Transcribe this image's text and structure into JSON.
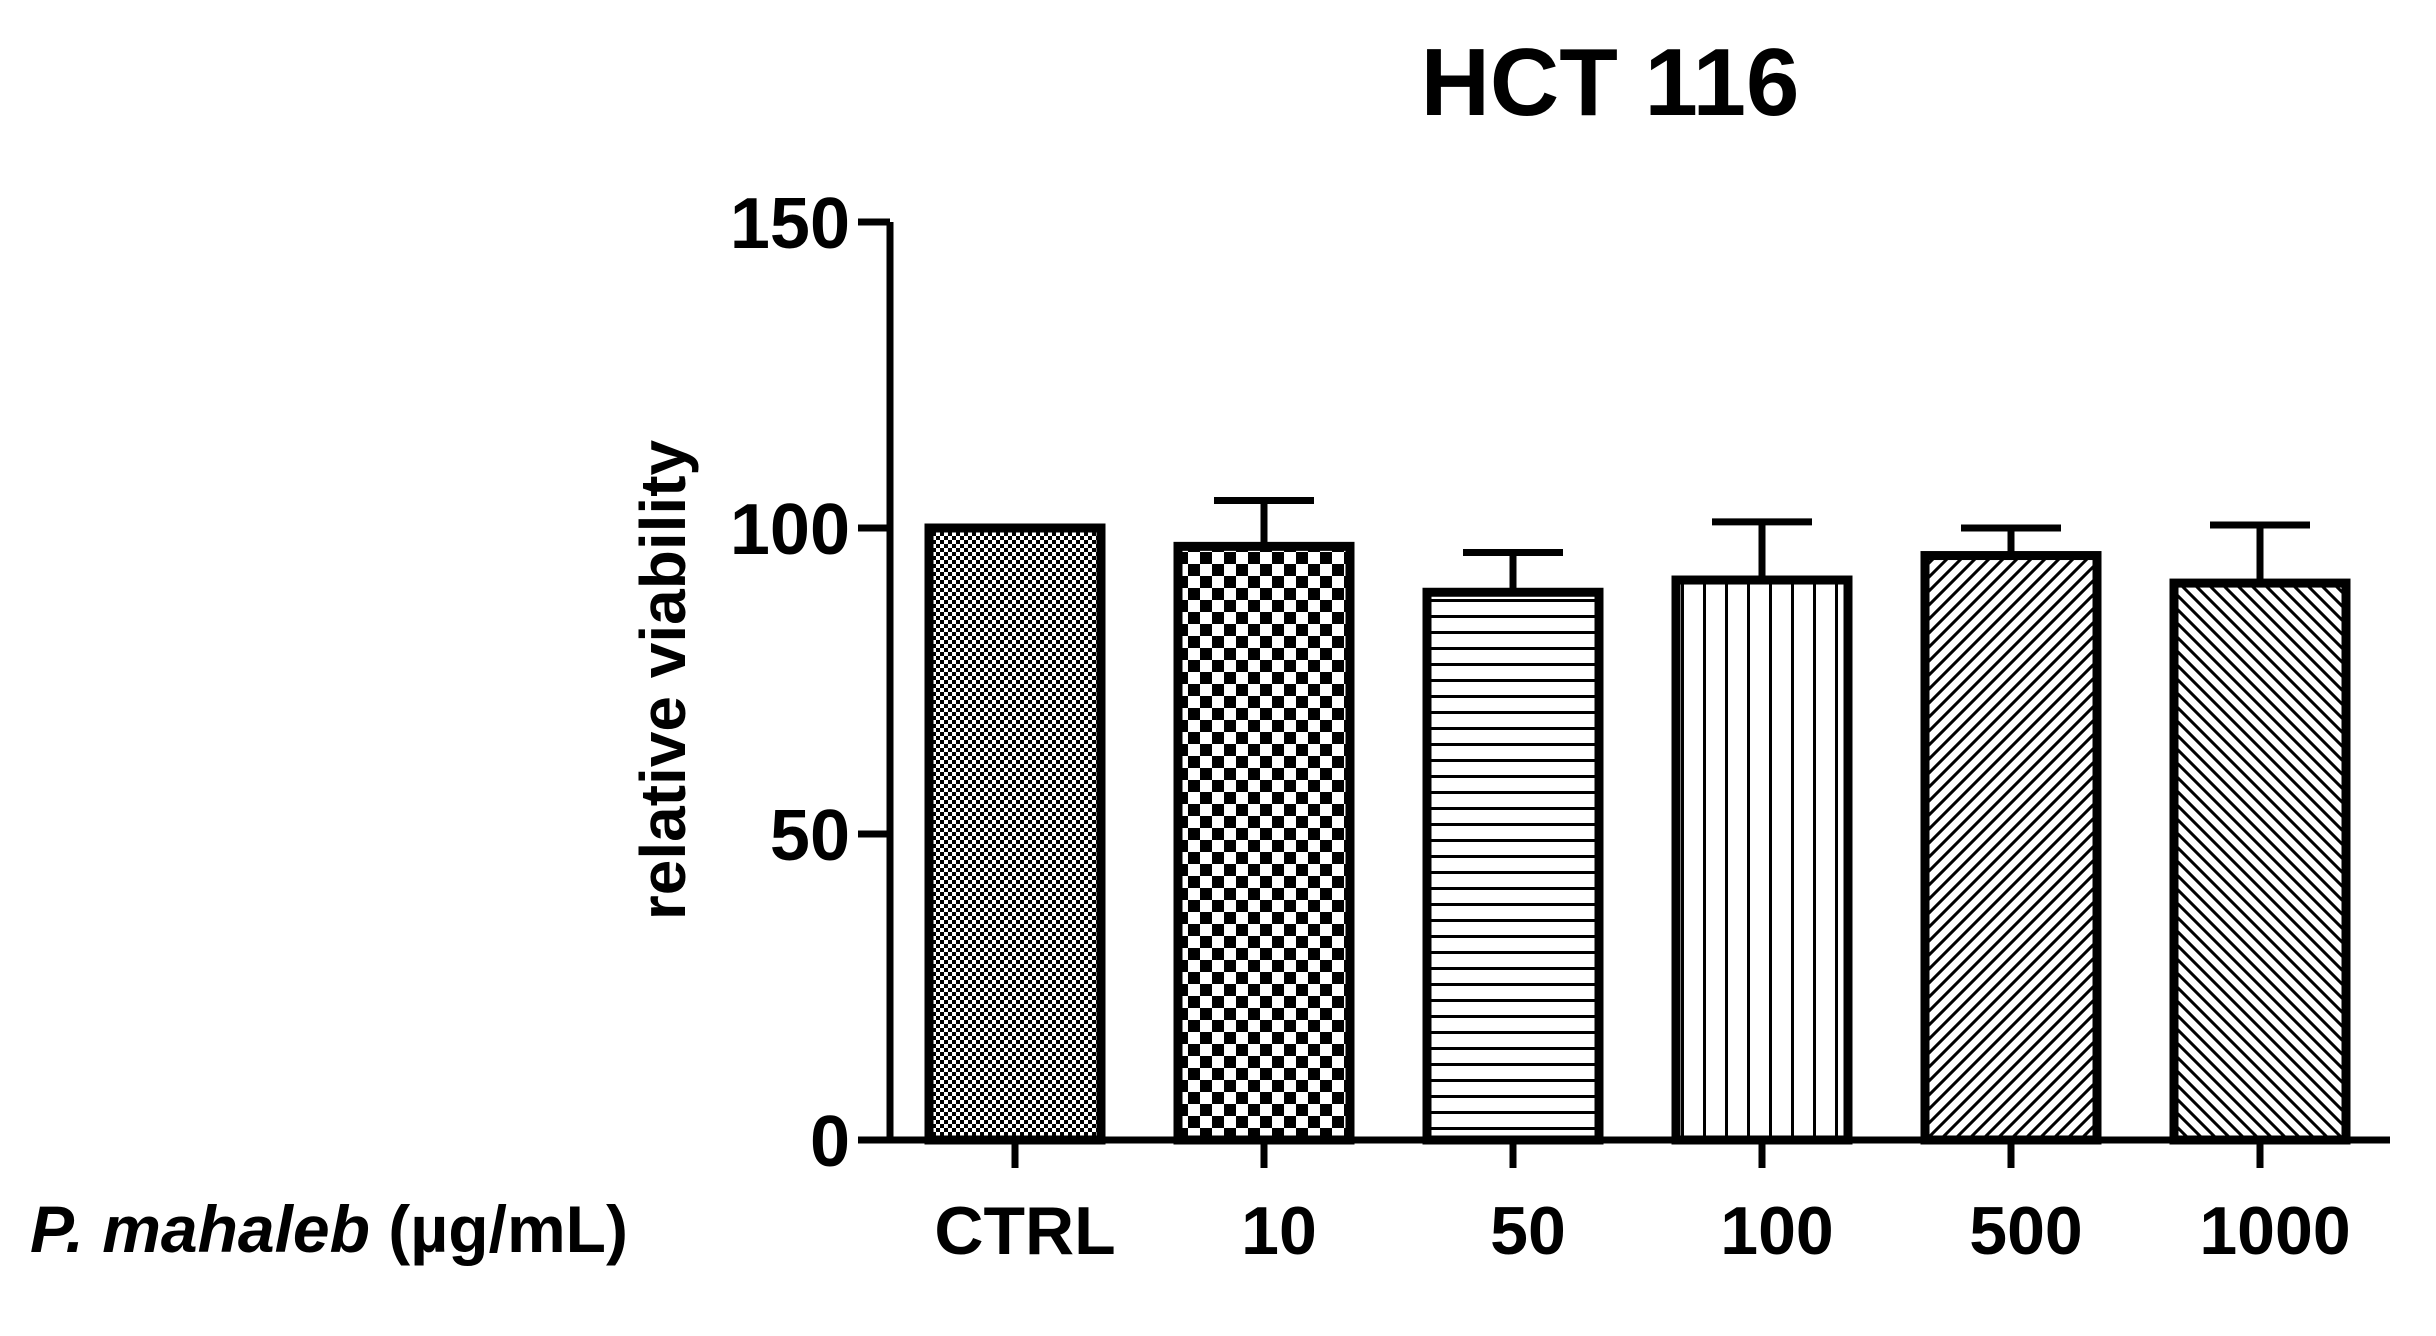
{
  "chart_data": {
    "type": "bar",
    "title": "HCT 116",
    "ylabel": "relative viability",
    "xlabel_italic": "P. mahaleb",
    "xlabel_rest": " (µg/mL)",
    "categories": [
      "CTRL",
      "10",
      "50",
      "100",
      "500",
      "1000"
    ],
    "values": [
      100,
      97,
      89.5,
      91.5,
      95.5,
      91
    ],
    "errors": [
      0,
      7.5,
      6.5,
      9.5,
      4.5,
      9.5
    ],
    "ylim": [
      0,
      150
    ],
    "yticks": [
      0,
      50,
      100,
      150
    ],
    "patterns": [
      "fine-dots",
      "checker",
      "horizontal-lines",
      "vertical-lines",
      "diagonal-right",
      "diagonal-left"
    ],
    "colors": {
      "bar_stroke": "#000000",
      "pattern": "#000000",
      "background": "#ffffff"
    },
    "grid": false,
    "legend": "none"
  }
}
